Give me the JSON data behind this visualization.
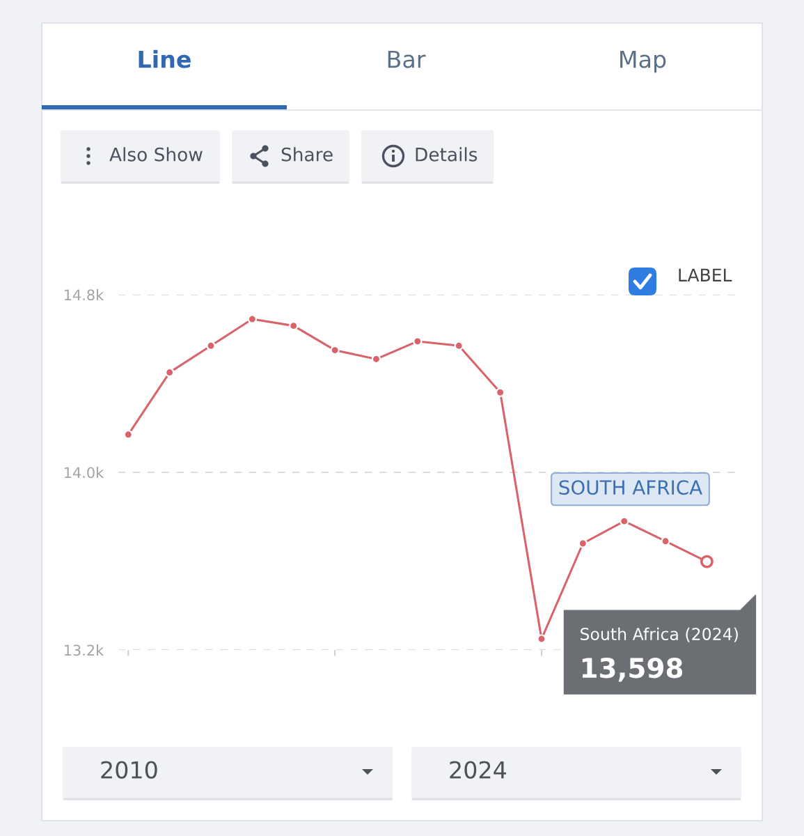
{
  "chart_data": {
    "type": "line",
    "categories": [
      null,
      null,
      null,
      null,
      null,
      null,
      null,
      null,
      null,
      null,
      null,
      null,
      null,
      null,
      null
    ],
    "series": [
      {
        "name": "SOUTH AFRICA",
        "color": "#d9636a",
        "values": [
          14170,
          14450,
          14570,
          14690,
          14660,
          14550,
          14510,
          14590,
          14570,
          14360,
          13250,
          13680,
          13780,
          13690,
          13598
        ]
      }
    ],
    "ylim": [
      13200,
      14800
    ],
    "yticks": [
      {
        "value": 13200,
        "label": "13.2k"
      },
      {
        "value": 14000,
        "label": "14.0k"
      },
      {
        "value": 14800,
        "label": "14.8k"
      }
    ],
    "grid": "y",
    "marker": "circle",
    "line_style": "solid",
    "tick_labels": "y",
    "annotations": [
      "Line",
      "Bar",
      "Map",
      "Also Show",
      "Share",
      "Details",
      "LABEL",
      "2010",
      "2024",
      "South Africa (2024)",
      "13,598"
    ]
  }
}
